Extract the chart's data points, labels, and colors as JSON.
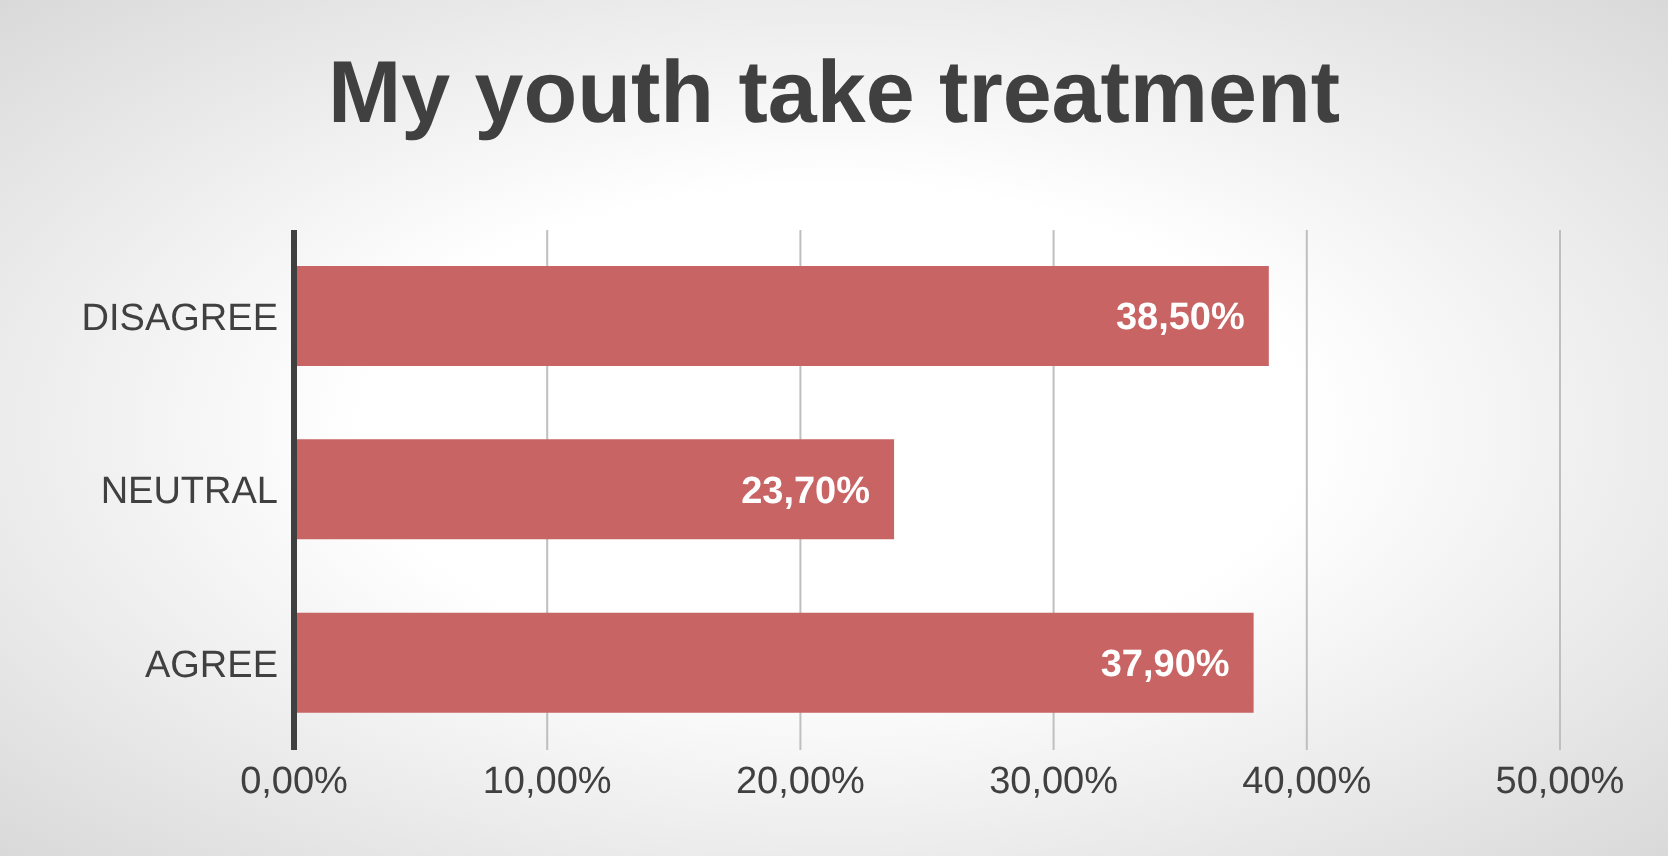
{
  "chart_data": {
    "type": "bar",
    "orientation": "horizontal",
    "title": "My youth take treatment",
    "categories": [
      "DISAGREE",
      "NEUTRAL",
      "AGREE"
    ],
    "values": [
      38.5,
      23.7,
      37.9
    ],
    "color": "#c86464",
    "value_labels": [
      "38,50%",
      "23,70%",
      "37,90%"
    ],
    "xlim": [
      0,
      50
    ],
    "xticks": [
      {
        "value": 0,
        "label": "0,00%"
      },
      {
        "value": 10,
        "label": "10,00%"
      },
      {
        "value": 20,
        "label": "20,00%"
      },
      {
        "value": 30,
        "label": "30,00%"
      },
      {
        "value": 40,
        "label": "40,00%"
      },
      {
        "value": 50,
        "label": "50,00%"
      }
    ],
    "grid": "x",
    "legend": false
  }
}
